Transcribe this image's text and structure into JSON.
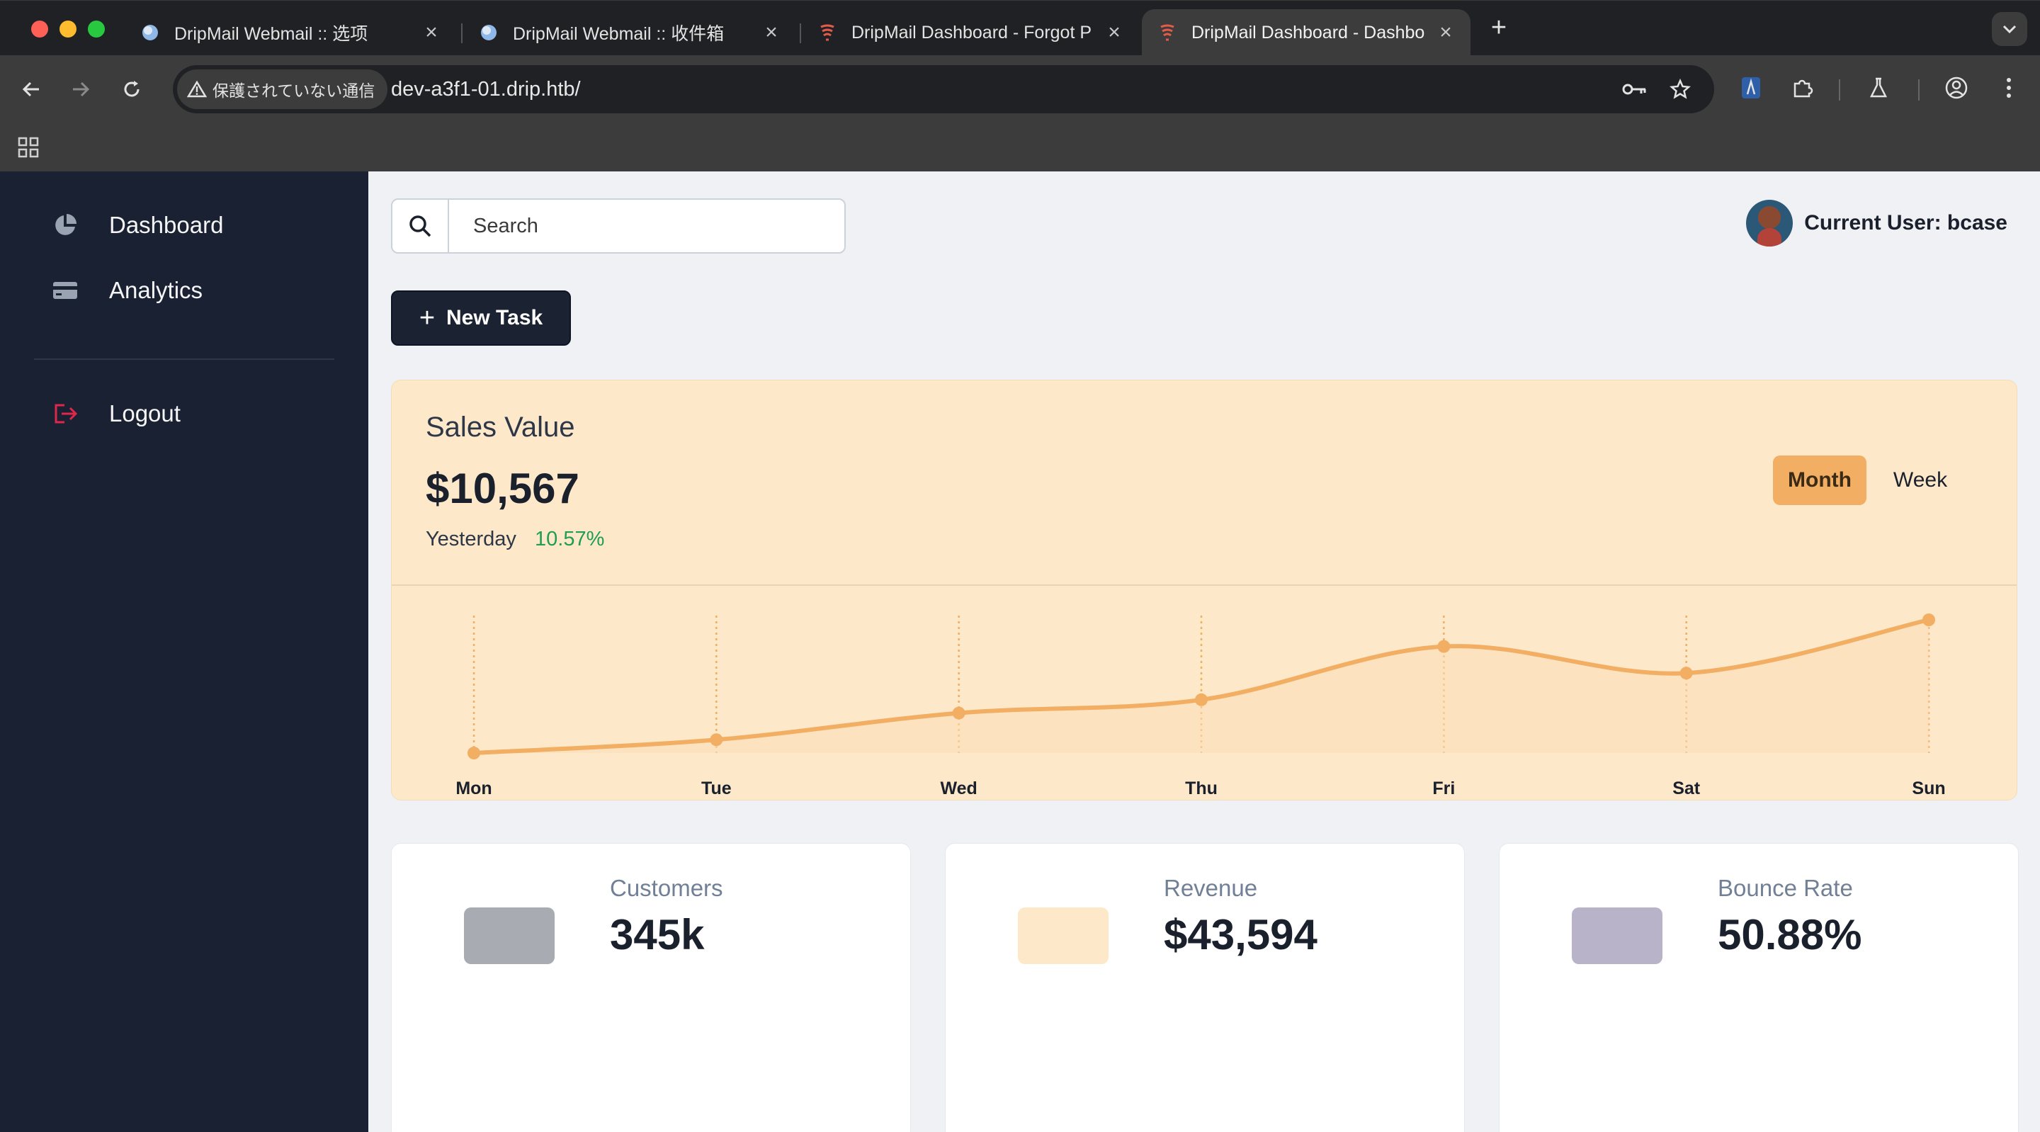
{
  "browser": {
    "tabs": [
      {
        "title": "DripMail Webmail :: 选项",
        "favicon": "webmail-globe-icon"
      },
      {
        "title": "DripMail Webmail :: 收件箱",
        "favicon": "webmail-globe-icon"
      },
      {
        "title": "DripMail Dashboard - Forgot P",
        "favicon": "drip-logo-icon"
      },
      {
        "title": "DripMail Dashboard - Dashbo",
        "favicon": "drip-logo-icon"
      }
    ],
    "security_label": "保護されていない通信",
    "url": "dev-a3f1-01.drip.htb/"
  },
  "sidebar": {
    "items": [
      {
        "label": "Dashboard",
        "icon": "pie-chart-icon"
      },
      {
        "label": "Analytics",
        "icon": "credit-card-icon"
      }
    ],
    "logout_label": "Logout"
  },
  "header": {
    "search_placeholder": "Search",
    "user_label": "Current User: bcase",
    "new_task_label": "New Task"
  },
  "sales": {
    "title": "Sales Value",
    "value": "$10,567",
    "sub_label": "Yesterday",
    "change": "10.57%",
    "toggle": {
      "month": "Month",
      "week": "Week",
      "selected": "Month"
    }
  },
  "chart_data": {
    "type": "area",
    "categories": [
      "Mon",
      "Tue",
      "Wed",
      "Thu",
      "Fri",
      "Sat",
      "Sun"
    ],
    "values": [
      0,
      10,
      30,
      40,
      80,
      60,
      100
    ],
    "ylim": [
      0,
      100
    ],
    "grid": "vertical dotted",
    "colors": {
      "line": "#f2ae63",
      "fill": "#fcdcb6",
      "grid": "#f2ae63"
    }
  },
  "stats": [
    {
      "label": "Customers",
      "value": "345k",
      "icon_color": "#a9abb3"
    },
    {
      "label": "Revenue",
      "value": "$43,594",
      "icon_color": "#fde8c9"
    },
    {
      "label": "Bounce Rate",
      "value": "50.88%",
      "icon_color": "#b8b3c9"
    }
  ]
}
